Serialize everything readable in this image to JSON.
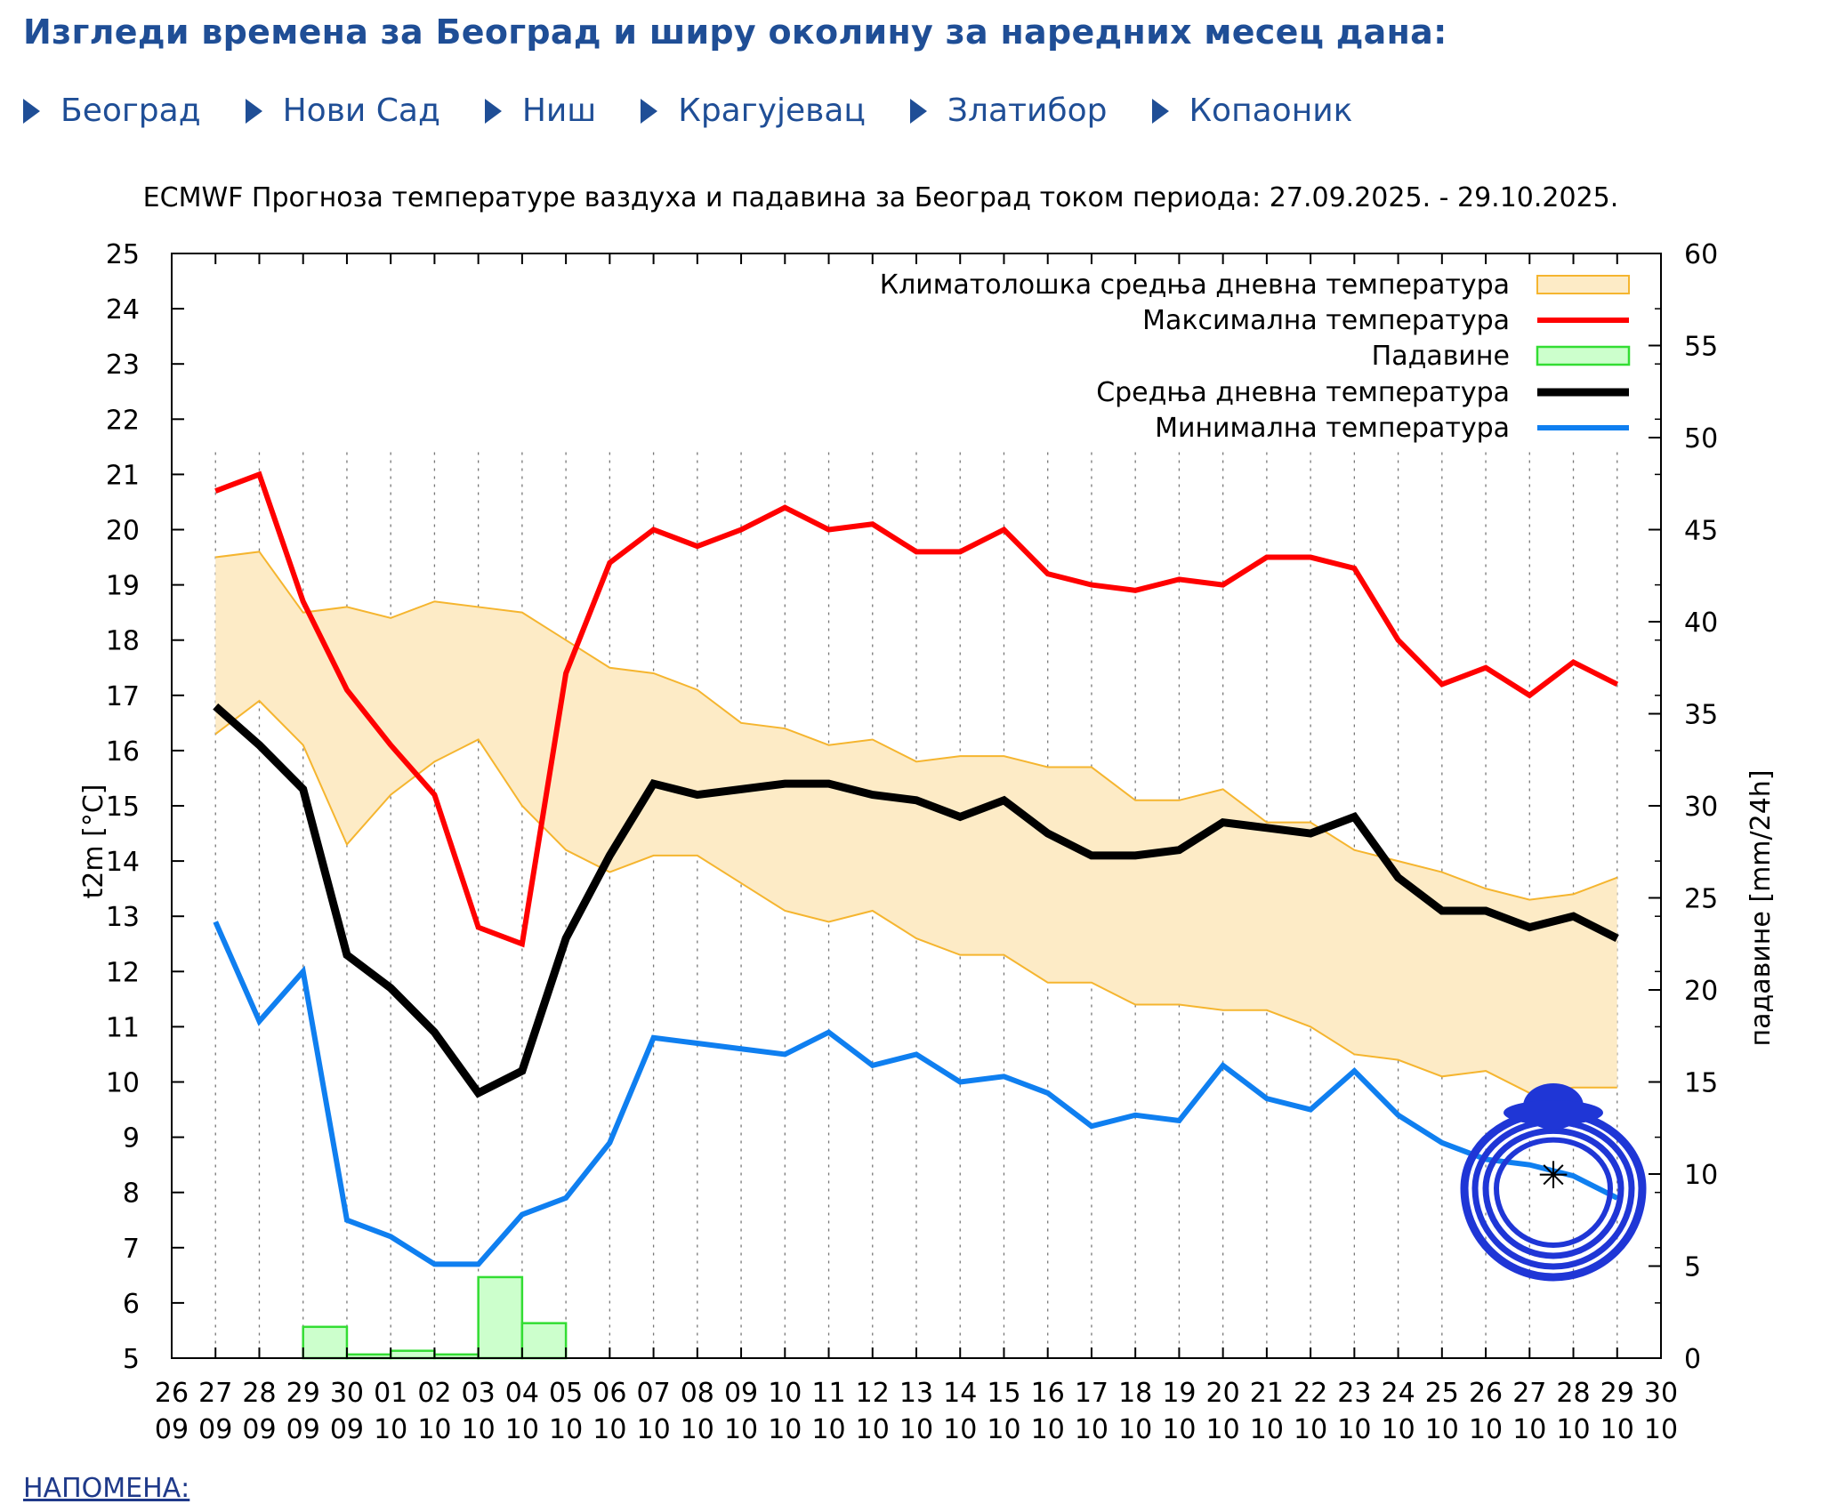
{
  "header": {
    "title": "Изгледи времена за Београд и ширу околину за наредних месец дана:"
  },
  "nav": {
    "cities": [
      "Београд",
      "Нови Сад",
      "Ниш",
      "Крагујевац",
      "Златибор",
      "Копаоник"
    ]
  },
  "note": {
    "label": "НАПОМЕНА:"
  },
  "colors": {
    "link": "#1f4e96",
    "max_temp": "#ff0000",
    "mean_temp": "#000000",
    "min_temp": "#0f7ff0",
    "climatology_fill": "#fdebc6",
    "climatology_line": "#f5b52f",
    "precipitation_fill": "#ccffcc",
    "precipitation_line": "#33dd33"
  },
  "chart_data": {
    "type": "line",
    "title": "ECMWF Прогноза температуре ваздуха и падавина за Београд током периода: 27.09.2025. - 29.10.2025.",
    "ylabel": "t2m [°C]",
    "y2label": "падавине [mm/24h]",
    "ylim": [
      5,
      25
    ],
    "y2lim": [
      0,
      60
    ],
    "yticks": [
      5,
      6,
      7,
      8,
      9,
      10,
      11,
      12,
      13,
      14,
      15,
      16,
      17,
      18,
      19,
      20,
      21,
      22,
      23,
      24,
      25
    ],
    "y2ticks": [
      0,
      5,
      10,
      15,
      20,
      25,
      30,
      35,
      40,
      45,
      50,
      55,
      60
    ],
    "x_ticks": [
      {
        "day": "26",
        "month": "09"
      },
      {
        "day": "27",
        "month": "09"
      },
      {
        "day": "28",
        "month": "09"
      },
      {
        "day": "29",
        "month": "09"
      },
      {
        "day": "30",
        "month": "09"
      },
      {
        "day": "01",
        "month": "10"
      },
      {
        "day": "02",
        "month": "10"
      },
      {
        "day": "03",
        "month": "10"
      },
      {
        "day": "04",
        "month": "10"
      },
      {
        "day": "05",
        "month": "10"
      },
      {
        "day": "06",
        "month": "10"
      },
      {
        "day": "07",
        "month": "10"
      },
      {
        "day": "08",
        "month": "10"
      },
      {
        "day": "09",
        "month": "10"
      },
      {
        "day": "10",
        "month": "10"
      },
      {
        "day": "11",
        "month": "10"
      },
      {
        "day": "12",
        "month": "10"
      },
      {
        "day": "13",
        "month": "10"
      },
      {
        "day": "14",
        "month": "10"
      },
      {
        "day": "15",
        "month": "10"
      },
      {
        "day": "16",
        "month": "10"
      },
      {
        "day": "17",
        "month": "10"
      },
      {
        "day": "18",
        "month": "10"
      },
      {
        "day": "19",
        "month": "10"
      },
      {
        "day": "20",
        "month": "10"
      },
      {
        "day": "21",
        "month": "10"
      },
      {
        "day": "22",
        "month": "10"
      },
      {
        "day": "23",
        "month": "10"
      },
      {
        "day": "24",
        "month": "10"
      },
      {
        "day": "25",
        "month": "10"
      },
      {
        "day": "26",
        "month": "10"
      },
      {
        "day": "27",
        "month": "10"
      },
      {
        "day": "28",
        "month": "10"
      },
      {
        "day": "29",
        "month": "10"
      },
      {
        "day": "30",
        "month": "10"
      }
    ],
    "x_dates": [
      "27.09",
      "28.09",
      "29.09",
      "30.09",
      "01.10",
      "02.10",
      "03.10",
      "04.10",
      "05.10",
      "06.10",
      "07.10",
      "08.10",
      "09.10",
      "10.10",
      "11.10",
      "12.10",
      "13.10",
      "14.10",
      "15.10",
      "16.10",
      "17.10",
      "18.10",
      "19.10",
      "20.10",
      "21.10",
      "22.10",
      "23.10",
      "24.10",
      "25.10",
      "26.10",
      "27.10",
      "28.10",
      "29.10"
    ],
    "grid": "vertical dashed",
    "legend_position": "top-right",
    "legend": [
      {
        "label": "Климатолошка средња дневна температура",
        "kind": "band"
      },
      {
        "label": "Максимална температура",
        "kind": "max"
      },
      {
        "label": "Падавине",
        "kind": "precip"
      },
      {
        "label": "Средња дневна температура",
        "kind": "mean"
      },
      {
        "label": "Минимална температура",
        "kind": "min"
      }
    ],
    "series": [
      {
        "name": "Максимална температура",
        "key": "max",
        "values": [
          20.7,
          21.0,
          18.7,
          17.1,
          16.1,
          15.2,
          12.8,
          12.5,
          17.4,
          19.4,
          20.0,
          19.7,
          20.0,
          20.4,
          20.0,
          20.1,
          19.6,
          19.6,
          20.0,
          19.2,
          19.0,
          18.9,
          19.1,
          19.0,
          19.5,
          19.5,
          19.3,
          18.0,
          17.2,
          17.5,
          17.0,
          17.6,
          17.2
        ]
      },
      {
        "name": "Средња дневна температура",
        "key": "mean",
        "values": [
          16.8,
          16.1,
          15.3,
          12.3,
          11.7,
          10.9,
          9.8,
          10.2,
          12.6,
          14.1,
          15.4,
          15.2,
          15.3,
          15.4,
          15.4,
          15.2,
          15.1,
          14.8,
          15.1,
          14.5,
          14.1,
          14.1,
          14.2,
          14.7,
          14.6,
          14.5,
          14.8,
          13.7,
          13.1,
          13.1,
          12.8,
          13.0,
          12.6
        ]
      },
      {
        "name": "Минимална температура",
        "key": "min",
        "values": [
          12.9,
          11.1,
          12.0,
          7.5,
          7.2,
          6.7,
          6.7,
          7.6,
          7.9,
          8.9,
          10.8,
          10.7,
          10.6,
          10.5,
          10.9,
          10.3,
          10.5,
          10.0,
          10.1,
          9.8,
          9.2,
          9.4,
          9.3,
          10.3,
          9.7,
          9.5,
          10.2,
          9.4,
          8.9,
          8.6,
          8.5,
          8.3,
          7.9
        ]
      }
    ],
    "climatology": {
      "name": "Климатолошка средња дневна температура",
      "upper": [
        19.5,
        19.6,
        18.5,
        18.6,
        18.4,
        18.7,
        18.6,
        18.5,
        18.0,
        17.5,
        17.4,
        17.1,
        16.5,
        16.4,
        16.1,
        16.2,
        15.8,
        15.9,
        15.9,
        15.7,
        15.7,
        15.1,
        15.1,
        15.3,
        14.7,
        14.7,
        14.2,
        14.0,
        13.8,
        13.5,
        13.3,
        13.4,
        13.7
      ],
      "lower": [
        16.3,
        16.9,
        16.1,
        14.3,
        15.2,
        15.8,
        16.2,
        15.0,
        14.2,
        13.8,
        14.1,
        14.1,
        13.6,
        13.1,
        12.9,
        13.1,
        12.6,
        12.3,
        12.3,
        11.8,
        11.8,
        11.4,
        11.4,
        11.3,
        11.3,
        11.0,
        10.5,
        10.4,
        10.1,
        10.2,
        9.8,
        9.9,
        9.9
      ]
    },
    "precipitation": {
      "name": "Падавине",
      "bars": [
        {
          "date": "29.09",
          "value": 1.7
        },
        {
          "date": "30.09",
          "value": 0.2
        },
        {
          "date": "01.10",
          "value": 0.4
        },
        {
          "date": "02.10",
          "value": 0.2
        },
        {
          "date": "03.10",
          "value": 4.4
        },
        {
          "date": "04.10",
          "value": 1.9
        }
      ]
    }
  }
}
